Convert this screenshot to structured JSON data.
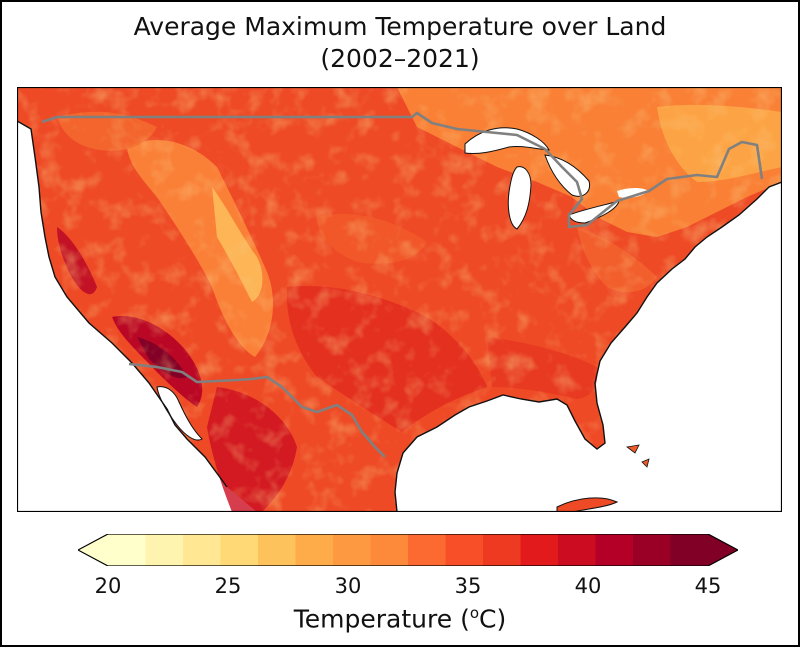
{
  "figure": {
    "title_line1": "Average Maximum Temperature over Land",
    "title_line2": "(2002–2021)"
  },
  "colorbar": {
    "label_prefix": "Temperature (",
    "label_sup": "o",
    "label_suffix": "C)",
    "min": 20,
    "max": 45,
    "ticks": [
      "20",
      "25",
      "30",
      "35",
      "40",
      "45"
    ],
    "extend": "both",
    "colors": [
      "#ffffcc",
      "#fff3b0",
      "#ffe793",
      "#fed976",
      "#fec25c",
      "#feab49",
      "#fd9a41",
      "#fd8a3a",
      "#fc6a32",
      "#f84f29",
      "#ef3a22",
      "#e31a1c",
      "#cc0c21",
      "#b40026",
      "#9a0026",
      "#800026"
    ]
  },
  "map": {
    "region": "Contiguous United States",
    "boundaries": [
      "coastlines",
      "country borders"
    ]
  }
}
